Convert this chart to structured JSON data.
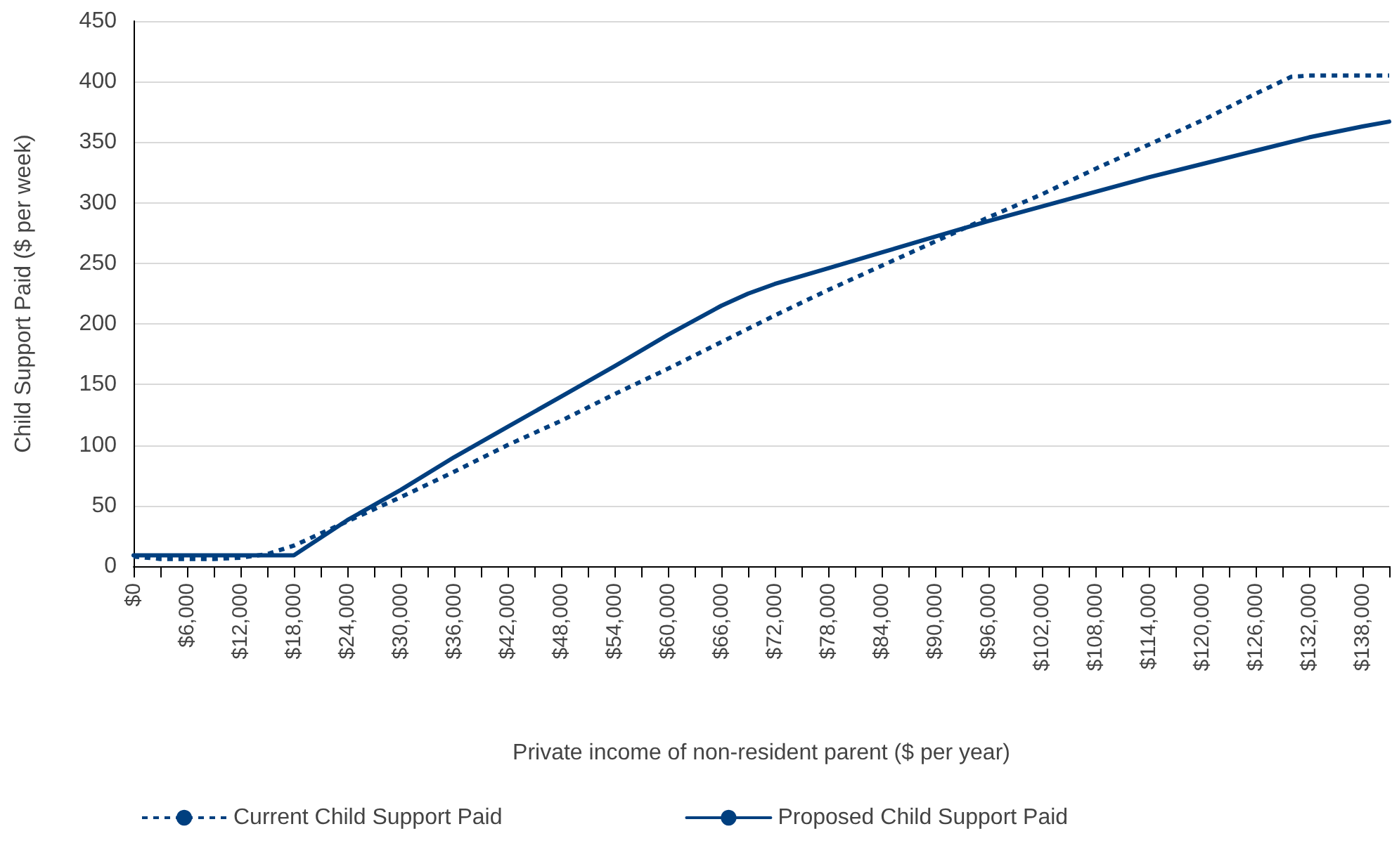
{
  "chart_data": {
    "type": "line",
    "xlabel": "Private income of non-resident parent ($ per year)",
    "ylabel": "Child Support Paid ($ per week)",
    "xlim": [
      0,
      141000
    ],
    "ylim": [
      0,
      450
    ],
    "yticks": [
      0,
      50,
      100,
      150,
      200,
      250,
      300,
      350,
      400,
      450
    ],
    "xticks": [
      {
        "value": 0,
        "label": "$0"
      },
      {
        "value": 3000,
        "label": null
      },
      {
        "value": 6000,
        "label": "$6,000"
      },
      {
        "value": 9000,
        "label": null
      },
      {
        "value": 12000,
        "label": "$12,000"
      },
      {
        "value": 15000,
        "label": null
      },
      {
        "value": 18000,
        "label": "$18,000"
      },
      {
        "value": 21000,
        "label": null
      },
      {
        "value": 24000,
        "label": "$24,000"
      },
      {
        "value": 27000,
        "label": null
      },
      {
        "value": 30000,
        "label": "$30,000"
      },
      {
        "value": 33000,
        "label": null
      },
      {
        "value": 36000,
        "label": "$36,000"
      },
      {
        "value": 39000,
        "label": null
      },
      {
        "value": 42000,
        "label": "$42,000"
      },
      {
        "value": 45000,
        "label": null
      },
      {
        "value": 48000,
        "label": "$48,000"
      },
      {
        "value": 51000,
        "label": null
      },
      {
        "value": 54000,
        "label": "$54,000"
      },
      {
        "value": 57000,
        "label": null
      },
      {
        "value": 60000,
        "label": "$60,000"
      },
      {
        "value": 63000,
        "label": null
      },
      {
        "value": 66000,
        "label": "$66,000"
      },
      {
        "value": 69000,
        "label": null
      },
      {
        "value": 72000,
        "label": "$72,000"
      },
      {
        "value": 75000,
        "label": null
      },
      {
        "value": 78000,
        "label": "$78,000"
      },
      {
        "value": 81000,
        "label": null
      },
      {
        "value": 84000,
        "label": "$84,000"
      },
      {
        "value": 87000,
        "label": null
      },
      {
        "value": 90000,
        "label": "$90,000"
      },
      {
        "value": 93000,
        "label": null
      },
      {
        "value": 96000,
        "label": "$96,000"
      },
      {
        "value": 99000,
        "label": null
      },
      {
        "value": 102000,
        "label": "$102,000"
      },
      {
        "value": 105000,
        "label": null
      },
      {
        "value": 108000,
        "label": "$108,000"
      },
      {
        "value": 111000,
        "label": null
      },
      {
        "value": 114000,
        "label": "$114,000"
      },
      {
        "value": 117000,
        "label": null
      },
      {
        "value": 120000,
        "label": "$120,000"
      },
      {
        "value": 123000,
        "label": null
      },
      {
        "value": 126000,
        "label": "$126,000"
      },
      {
        "value": 129000,
        "label": null
      },
      {
        "value": 132000,
        "label": "$132,000"
      },
      {
        "value": 135000,
        "label": null
      },
      {
        "value": 138000,
        "label": "$138,000"
      },
      {
        "value": 141000,
        "label": null
      }
    ],
    "grid": "y",
    "legend": "bottom",
    "marker": "none",
    "series": [
      {
        "name": "Current Child Support Paid",
        "color": "#003f7f",
        "line_style": "dashed",
        "x": [
          0,
          3000,
          6000,
          9000,
          12000,
          15000,
          18000,
          24000,
          30000,
          36000,
          42000,
          48000,
          54000,
          60000,
          66000,
          72000,
          78000,
          84000,
          90000,
          96000,
          102000,
          108000,
          114000,
          120000,
          126000,
          130000,
          132000,
          141000
        ],
        "values": [
          8,
          6,
          6,
          6,
          7,
          10,
          17,
          37,
          57,
          78,
          100,
          120,
          142,
          163,
          185,
          207,
          228,
          248,
          268,
          288,
          307,
          328,
          348,
          368,
          390,
          404,
          405,
          405
        ]
      },
      {
        "name": "Proposed Child Support Paid",
        "color": "#003f7f",
        "line_style": "solid",
        "x": [
          0,
          18000,
          24000,
          30000,
          36000,
          42000,
          48000,
          54000,
          60000,
          66000,
          69000,
          72000,
          78000,
          84000,
          90000,
          96000,
          102000,
          108000,
          114000,
          120000,
          126000,
          132000,
          138000,
          141000
        ],
        "values": [
          9,
          9,
          38,
          63,
          90,
          115,
          140,
          165,
          191,
          215,
          225,
          233,
          246,
          259,
          272,
          285,
          297,
          309,
          321,
          332,
          343,
          354,
          363,
          367
        ]
      }
    ]
  }
}
